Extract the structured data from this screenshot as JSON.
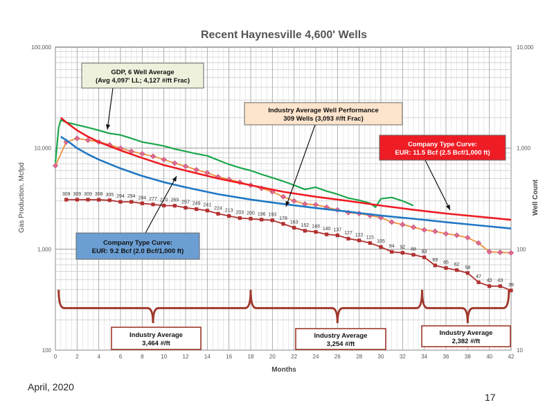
{
  "slide": {
    "date": "April, 2020",
    "page_number": "17"
  },
  "chart_data": {
    "type": "line",
    "title": "Recent Haynesville 4,600' Wells",
    "xlabel": "Months",
    "ylabel": "Gas Production, Mcfpd",
    "y2label": "Well Count",
    "xlim": [
      0,
      42
    ],
    "ylim": [
      100,
      100000
    ],
    "y2lim": [
      10,
      10000
    ],
    "yscale": "log",
    "x_ticks": [
      0,
      2,
      4,
      6,
      8,
      10,
      12,
      14,
      16,
      18,
      20,
      22,
      24,
      26,
      28,
      30,
      32,
      34,
      36,
      38,
      40,
      42
    ],
    "y_ticks": [
      "100",
      "1,000",
      "10,000",
      "100,000"
    ],
    "y2_ticks": [
      "10",
      "100",
      "1,000",
      "10,000"
    ],
    "grid": true,
    "series": [
      {
        "name": "GDP, 6 Well Average",
        "color": "#1aa64a",
        "x": [
          0,
          0.3,
          0.5,
          1,
          2,
          3,
          4,
          5,
          6,
          7,
          8,
          9,
          10,
          11,
          12,
          13,
          14,
          15,
          16,
          17,
          18,
          19,
          20,
          21,
          22,
          23,
          24,
          25,
          26,
          27,
          28,
          29,
          29.5,
          30,
          31,
          32,
          33
        ],
        "y": [
          7200,
          16000,
          19000,
          18000,
          17000,
          16000,
          15000,
          14000,
          13500,
          12500,
          11500,
          11000,
          10500,
          9800,
          9300,
          8800,
          8400,
          7600,
          6900,
          6400,
          6000,
          5500,
          5100,
          4700,
          4300,
          3900,
          4100,
          3750,
          3500,
          3200,
          3050,
          2850,
          2600,
          3150,
          3250,
          3000,
          2700
        ]
      },
      {
        "name": "Industry Average Well Performance",
        "color": "#f0913a",
        "marker_color": "#e06a8e",
        "x": [
          0,
          1,
          2,
          3,
          4,
          5,
          6,
          7,
          8,
          9,
          10,
          11,
          12,
          13,
          14,
          15,
          16,
          17,
          18,
          19,
          20,
          21,
          22,
          23,
          24,
          25,
          26,
          27,
          28,
          29,
          30,
          31,
          32,
          33,
          34,
          35,
          36,
          37,
          38,
          39,
          40,
          41,
          42
        ],
        "y": [
          6700,
          11500,
          12500,
          12000,
          11500,
          10800,
          10000,
          9300,
          8800,
          8300,
          7700,
          7100,
          6600,
          6100,
          5700,
          5200,
          4900,
          4600,
          4300,
          4000,
          3700,
          3300,
          3000,
          2800,
          2750,
          2600,
          2450,
          2300,
          2250,
          2150,
          2050,
          1850,
          1750,
          1650,
          1550,
          1500,
          1420,
          1370,
          1300,
          1150,
          940,
          930,
          920
        ]
      },
      {
        "name": "Company Type Curve: EUR: 11.5 Bcf (2.5 Bcf/1,000 ft)",
        "color": "#ee1c24",
        "x": [
          0.5,
          1,
          2,
          3,
          4,
          6,
          8,
          10,
          12,
          15,
          18,
          21,
          24,
          27,
          30,
          33,
          36,
          39,
          42
        ],
        "y": [
          20000,
          18000,
          15000,
          13000,
          11500,
          9500,
          8000,
          6800,
          6000,
          5000,
          4300,
          3700,
          3300,
          3000,
          2700,
          2450,
          2250,
          2100,
          1950
        ]
      },
      {
        "name": "Company Type Curve: EUR: 9.2 Bcf (2.0 Bcf/1,000 ft)",
        "color": "#1f77c4",
        "x": [
          0.5,
          1,
          2,
          3,
          4,
          6,
          8,
          10,
          12,
          15,
          18,
          21,
          24,
          27,
          30,
          33,
          36,
          39,
          42
        ],
        "y": [
          13000,
          12000,
          10000,
          8700,
          7700,
          6300,
          5300,
          4600,
          4100,
          3500,
          3100,
          2800,
          2550,
          2350,
          2150,
          2000,
          1850,
          1720,
          1600
        ]
      },
      {
        "name": "Well Count",
        "axis": "right",
        "color": "#b03030",
        "x": [
          1,
          2,
          3,
          4,
          5,
          6,
          7,
          8,
          9,
          10,
          11,
          12,
          13,
          14,
          15,
          16,
          17,
          18,
          19,
          20,
          21,
          22,
          23,
          24,
          25,
          26,
          27,
          28,
          29,
          30,
          31,
          32,
          33,
          34,
          35,
          36,
          37,
          38,
          39,
          40,
          41,
          42
        ],
        "y": [
          309,
          309,
          309,
          308,
          305,
          294,
          294,
          284,
          277,
          270,
          269,
          257,
          249,
          241,
          224,
          213,
          203,
          200,
          196,
          193,
          178,
          163,
          152,
          148,
          140,
          137,
          127,
          122,
          115,
          105,
          94,
          92,
          88,
          83,
          69,
          65,
          62,
          58,
          47,
          43,
          43,
          39
        ],
        "labels": [
          "309",
          "309",
          "309",
          "308",
          "305",
          "294",
          "294",
          "284",
          "277",
          "270",
          "269",
          "257",
          "249",
          "241",
          "224",
          "213",
          "203",
          "200",
          "196",
          "193",
          "178",
          "163",
          "152",
          "148",
          "140",
          "137",
          "127",
          "122",
          "115",
          "105",
          "94",
          "92",
          "88",
          "83",
          "69",
          "65",
          "62",
          "58",
          "47",
          "43",
          "43",
          "39"
        ]
      }
    ],
    "annotations": [
      {
        "lines": [
          "GDP, 6 Well Average",
          "(Avg 4,097' LL; 4,127 #/ft Frac)"
        ],
        "fill": "#eef1dc",
        "text_color": "#111111"
      },
      {
        "lines": [
          "Industry Average Well Performance",
          "309 Wells (3,093 #/ft Frac)"
        ],
        "fill": "#fde4cc",
        "text_color": "#111111"
      },
      {
        "lines": [
          "Company Type Curve:",
          "EUR: 11.5 Bcf (2.5 Bcf/1,000 ft)"
        ],
        "fill": "#ee1c24",
        "text_color": "#ffffff"
      },
      {
        "lines": [
          "Company Type Curve:",
          "EUR: 9.2 Bcf (2.0 Bcf/1,000 ft)"
        ],
        "fill": "#6b9fd4",
        "text_color": "#111111"
      },
      {
        "lines": [
          "Industry Average",
          "3,464 #/ft"
        ],
        "fill": "#ffffff",
        "text_color": "#111111"
      },
      {
        "lines": [
          "Industry Average",
          "3,254 #/ft"
        ],
        "fill": "#ffffff",
        "text_color": "#111111"
      },
      {
        "lines": [
          "Industry Average",
          "2,382 #/ft"
        ],
        "fill": "#ffffff",
        "text_color": "#111111"
      }
    ],
    "brace_color": "#a0382b"
  }
}
